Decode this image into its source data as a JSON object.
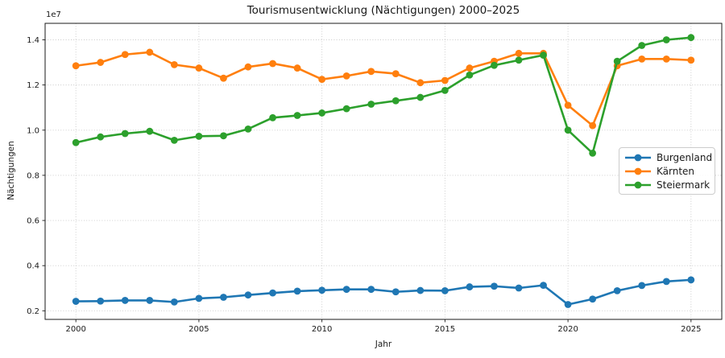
{
  "chart_data": {
    "type": "line",
    "title": "Tourismusentwicklung (Nächtigungen) 2000–2025",
    "xlabel": "Jahr",
    "ylabel": "Nächtigungen",
    "y_offset_label": "1e7",
    "grid": true,
    "legend_position": "center right",
    "x": [
      2000,
      2001,
      2002,
      2003,
      2004,
      2005,
      2006,
      2007,
      2008,
      2009,
      2010,
      2011,
      2012,
      2013,
      2014,
      2015,
      2016,
      2017,
      2018,
      2019,
      2020,
      2021,
      2022,
      2023,
      2024,
      2025
    ],
    "series": [
      {
        "id": "burgenland",
        "name": "Burgenland",
        "color": "#1f77b4",
        "values": [
          2420000,
          2430000,
          2460000,
          2460000,
          2390000,
          2550000,
          2600000,
          2700000,
          2790000,
          2870000,
          2910000,
          2950000,
          2950000,
          2840000,
          2900000,
          2890000,
          3060000,
          3090000,
          3010000,
          3130000,
          2280000,
          2520000,
          2890000,
          3120000,
          3300000,
          3370000
        ]
      },
      {
        "id": "kaernten",
        "name": "Kärnten",
        "color": "#ff7f0e",
        "values": [
          12850000,
          13000000,
          13350000,
          13450000,
          12900000,
          12750000,
          12300000,
          12800000,
          12950000,
          12750000,
          12250000,
          12400000,
          12600000,
          12500000,
          12100000,
          12200000,
          12750000,
          13050000,
          13400000,
          13400000,
          11100000,
          10200000,
          12850000,
          13150000,
          13150000,
          13100000
        ]
      },
      {
        "id": "steiermark",
        "name": "Steiermark",
        "color": "#2ca02c",
        "values": [
          9450000,
          9700000,
          9850000,
          9950000,
          9550000,
          9730000,
          9750000,
          10050000,
          10550000,
          10650000,
          10760000,
          10950000,
          11150000,
          11300000,
          11450000,
          11760000,
          12440000,
          12870000,
          13100000,
          13320000,
          10000000,
          8980000,
          13050000,
          13750000,
          14000000,
          14100000
        ]
      }
    ],
    "xticks": [
      2000,
      2005,
      2010,
      2015,
      2020,
      2025
    ],
    "xtick_labels": [
      "2000",
      "2005",
      "2010",
      "2015",
      "2020",
      "2025"
    ],
    "yticks": [
      2000000,
      4000000,
      6000000,
      8000000,
      10000000,
      12000000,
      14000000
    ],
    "ytick_labels": [
      "0.2",
      "0.4",
      "0.6",
      "0.8",
      "1.0",
      "1.2",
      "1.4"
    ],
    "xlim": [
      1998.75,
      2026.25
    ],
    "ylim": [
      1620000,
      14730000
    ]
  },
  "style": {
    "grid_color": "#c8c8c8",
    "spine_color": "#1a1a1a",
    "tick_color": "#1a1a1a",
    "background": "#ffffff"
  }
}
